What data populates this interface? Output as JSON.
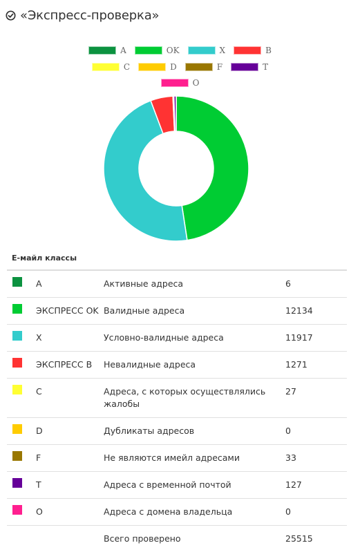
{
  "header": {
    "title": "«Экспресс-проверка»"
  },
  "colors": {
    "A": "#0c9240",
    "OK": "#00cc33",
    "X": "#33cccc",
    "B": "#ff3333",
    "C": "#ffff33",
    "D": "#ffcc00",
    "F": "#997700",
    "T": "#660099",
    "O": "#ff1f8f"
  },
  "chart_data": {
    "type": "pie",
    "donut": true,
    "legend_position": "top",
    "labels": [
      "A",
      "OK",
      "X",
      "B",
      "C",
      "D",
      "F",
      "T",
      "O"
    ],
    "values": [
      6,
      12134,
      11917,
      1271,
      27,
      0,
      33,
      127,
      0
    ]
  },
  "legend_rows": [
    [
      "A",
      "OK",
      "X",
      "B"
    ],
    [
      "C",
      "D",
      "F",
      "T"
    ],
    [
      "O"
    ]
  ],
  "table": {
    "title": "E-майл классы",
    "rows": [
      {
        "key": "A",
        "code": "A",
        "desc": "Активные адреса",
        "count": "6"
      },
      {
        "key": "OK",
        "code": "ЭКСПРЕСС OK",
        "desc": "Валидные адреса",
        "count": "12134"
      },
      {
        "key": "X",
        "code": "X",
        "desc": "Условно-валидные адреса",
        "count": "11917"
      },
      {
        "key": "B",
        "code": "ЭКСПРЕСС B",
        "desc": "Невалидные адреса",
        "count": "1271"
      },
      {
        "key": "C",
        "code": "C",
        "desc": "Адреса, с которых осуществлялись жалобы",
        "count": "27"
      },
      {
        "key": "D",
        "code": "D",
        "desc": "Дубликаты адресов",
        "count": "0"
      },
      {
        "key": "F",
        "code": "F",
        "desc": "Не являются имейл адресами",
        "count": "33"
      },
      {
        "key": "T",
        "code": "T",
        "desc": "Адреса с временной почтой",
        "count": "127"
      },
      {
        "key": "O",
        "code": "O",
        "desc": "Адреса с домена владельца",
        "count": "0"
      }
    ],
    "total_label": "Всего проверено",
    "total_value": "25515"
  }
}
